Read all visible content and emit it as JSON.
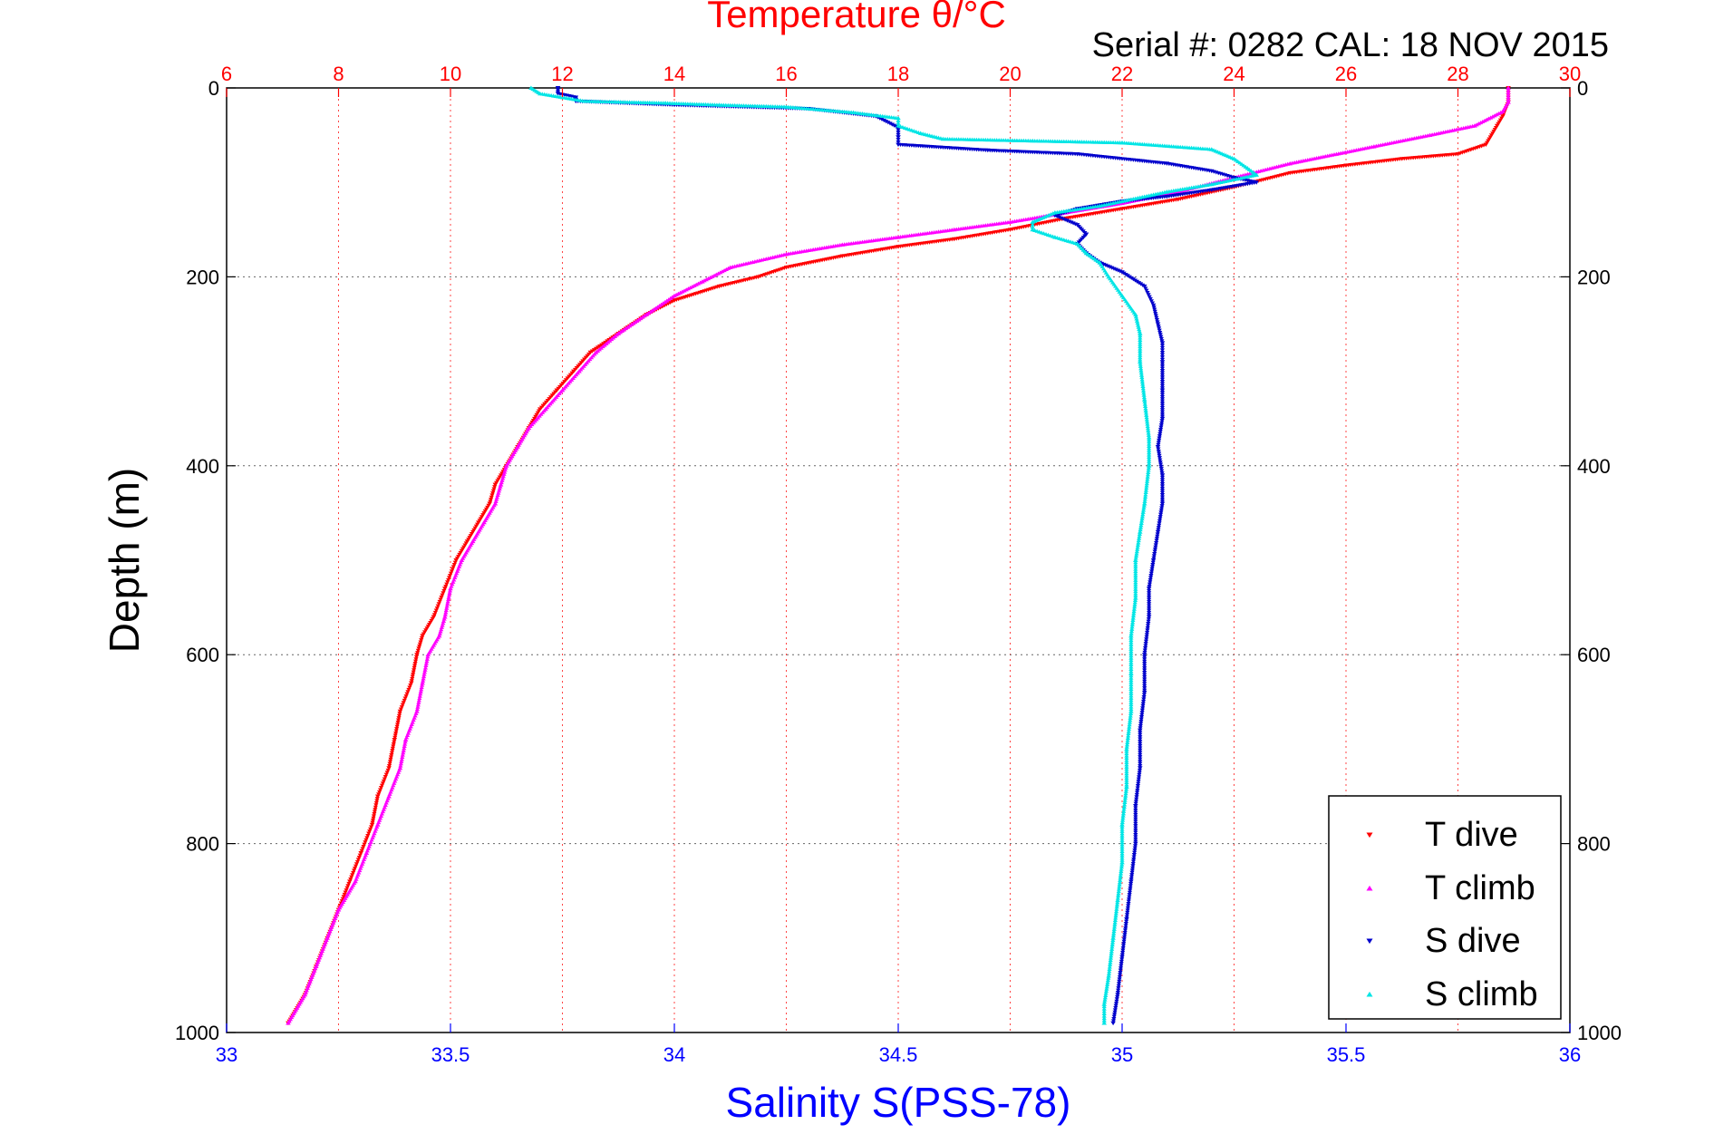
{
  "chart_data": {
    "type": "scatter",
    "title": "Temperature θ/°C",
    "annotation": "Serial #: 0282  CAL: 18 NOV 2015",
    "ylabel": "Depth (m)",
    "xlabel": "Salinity S(PSS-78)",
    "y_axis": {
      "range": [
        0,
        1000
      ],
      "reversed": true,
      "ticks": [
        "0",
        "200",
        "400",
        "600",
        "800",
        "1000"
      ]
    },
    "x_top": {
      "range": [
        6,
        30
      ],
      "ticks": [
        "6",
        "8",
        "10",
        "12",
        "14",
        "16",
        "18",
        "20",
        "22",
        "24",
        "26",
        "28",
        "30"
      ],
      "color": "#ff0000"
    },
    "x_bottom": {
      "range": [
        33,
        36
      ],
      "ticks": [
        "33",
        "33.5",
        "34",
        "34.5",
        "35",
        "35.5",
        "36"
      ],
      "color": "#0000ff"
    },
    "grid": true,
    "legend": {
      "placement": "bottom-right",
      "entries": [
        {
          "label": "T dive",
          "color": "#ff0000",
          "marker": "triangle-down"
        },
        {
          "label": "T climb",
          "color": "#ff00ff",
          "marker": "triangle-up"
        },
        {
          "label": "S dive",
          "color": "#0000cc",
          "marker": "triangle-down"
        },
        {
          "label": "S climb",
          "color": "#00e5e5",
          "marker": "triangle-up"
        }
      ]
    },
    "series": [
      {
        "name": "T dive",
        "axis": "top",
        "color": "#ff0000",
        "points": [
          [
            28.9,
            0
          ],
          [
            28.9,
            15
          ],
          [
            28.8,
            30
          ],
          [
            28.7,
            40
          ],
          [
            28.5,
            60
          ],
          [
            28.0,
            70
          ],
          [
            27.0,
            75
          ],
          [
            26.0,
            82
          ],
          [
            25.0,
            90
          ],
          [
            24.0,
            105
          ],
          [
            23.0,
            118
          ],
          [
            22.0,
            128
          ],
          [
            21.0,
            138
          ],
          [
            20.0,
            150
          ],
          [
            19.0,
            160
          ],
          [
            18.0,
            168
          ],
          [
            17.0,
            178
          ],
          [
            16.0,
            190
          ],
          [
            15.5,
            200
          ],
          [
            14.8,
            210
          ],
          [
            14.0,
            225
          ],
          [
            13.5,
            240
          ],
          [
            13.0,
            260
          ],
          [
            12.5,
            280
          ],
          [
            12.2,
            300
          ],
          [
            11.9,
            320
          ],
          [
            11.6,
            340
          ],
          [
            11.4,
            360
          ],
          [
            11.2,
            380
          ],
          [
            11.0,
            400
          ],
          [
            10.8,
            420
          ],
          [
            10.7,
            440
          ],
          [
            10.5,
            460
          ],
          [
            10.3,
            480
          ],
          [
            10.1,
            500
          ],
          [
            9.9,
            530
          ],
          [
            9.7,
            560
          ],
          [
            9.5,
            580
          ],
          [
            9.4,
            600
          ],
          [
            9.3,
            630
          ],
          [
            9.1,
            660
          ],
          [
            9.0,
            690
          ],
          [
            8.9,
            720
          ],
          [
            8.7,
            750
          ],
          [
            8.6,
            780
          ],
          [
            8.4,
            810
          ],
          [
            8.2,
            840
          ],
          [
            8.0,
            870
          ],
          [
            7.8,
            900
          ],
          [
            7.6,
            930
          ],
          [
            7.4,
            960
          ],
          [
            7.1,
            990
          ]
        ]
      },
      {
        "name": "T climb",
        "axis": "top",
        "color": "#ff00ff",
        "points": [
          [
            28.9,
            0
          ],
          [
            28.9,
            15
          ],
          [
            28.8,
            25
          ],
          [
            28.3,
            40
          ],
          [
            27.5,
            50
          ],
          [
            26.5,
            62
          ],
          [
            25.0,
            80
          ],
          [
            24.0,
            95
          ],
          [
            23.0,
            110
          ],
          [
            22.0,
            122
          ],
          [
            21.0,
            132
          ],
          [
            20.0,
            142
          ],
          [
            19.0,
            150
          ],
          [
            18.0,
            158
          ],
          [
            17.0,
            166
          ],
          [
            16.0,
            176
          ],
          [
            15.0,
            190
          ],
          [
            14.5,
            205
          ],
          [
            14.0,
            220
          ],
          [
            13.5,
            240
          ],
          [
            13.0,
            260
          ],
          [
            12.6,
            280
          ],
          [
            12.3,
            300
          ],
          [
            12.0,
            320
          ],
          [
            11.7,
            340
          ],
          [
            11.4,
            360
          ],
          [
            11.2,
            380
          ],
          [
            11.0,
            400
          ],
          [
            10.9,
            420
          ],
          [
            10.8,
            440
          ],
          [
            10.6,
            460
          ],
          [
            10.4,
            480
          ],
          [
            10.2,
            500
          ],
          [
            10.0,
            530
          ],
          [
            9.9,
            560
          ],
          [
            9.8,
            580
          ],
          [
            9.6,
            600
          ],
          [
            9.5,
            630
          ],
          [
            9.4,
            660
          ],
          [
            9.2,
            690
          ],
          [
            9.1,
            720
          ],
          [
            8.9,
            750
          ],
          [
            8.7,
            780
          ],
          [
            8.5,
            810
          ],
          [
            8.3,
            840
          ],
          [
            8.0,
            870
          ],
          [
            7.8,
            900
          ],
          [
            7.6,
            930
          ],
          [
            7.4,
            960
          ],
          [
            7.1,
            990
          ]
        ]
      },
      {
        "name": "S dive",
        "axis": "bottom",
        "color": "#0000cc",
        "points": [
          [
            33.74,
            0
          ],
          [
            33.74,
            6
          ],
          [
            33.78,
            10
          ],
          [
            33.78,
            14
          ],
          [
            34.0,
            18
          ],
          [
            34.3,
            22
          ],
          [
            34.45,
            30
          ],
          [
            34.5,
            42
          ],
          [
            34.5,
            52
          ],
          [
            34.5,
            60
          ],
          [
            34.7,
            66
          ],
          [
            34.9,
            70
          ],
          [
            35.1,
            80
          ],
          [
            35.2,
            88
          ],
          [
            35.25,
            95
          ],
          [
            35.3,
            100
          ],
          [
            35.2,
            108
          ],
          [
            35.1,
            115
          ],
          [
            35.0,
            120
          ],
          [
            34.9,
            128
          ],
          [
            34.85,
            135
          ],
          [
            34.9,
            145
          ],
          [
            34.92,
            155
          ],
          [
            34.9,
            165
          ],
          [
            34.92,
            175
          ],
          [
            34.95,
            185
          ],
          [
            35.0,
            195
          ],
          [
            35.05,
            210
          ],
          [
            35.07,
            230
          ],
          [
            35.08,
            250
          ],
          [
            35.09,
            270
          ],
          [
            35.09,
            290
          ],
          [
            35.09,
            320
          ],
          [
            35.09,
            350
          ],
          [
            35.08,
            380
          ],
          [
            35.09,
            410
          ],
          [
            35.09,
            440
          ],
          [
            35.08,
            470
          ],
          [
            35.07,
            500
          ],
          [
            35.06,
            530
          ],
          [
            35.06,
            560
          ],
          [
            35.05,
            600
          ],
          [
            35.05,
            640
          ],
          [
            35.04,
            680
          ],
          [
            35.04,
            720
          ],
          [
            35.03,
            760
          ],
          [
            35.03,
            800
          ],
          [
            35.02,
            840
          ],
          [
            35.01,
            880
          ],
          [
            35.0,
            920
          ],
          [
            34.99,
            960
          ],
          [
            34.98,
            990
          ]
        ]
      },
      {
        "name": "S climb",
        "axis": "bottom",
        "color": "#00e5e5",
        "points": [
          [
            33.68,
            0
          ],
          [
            33.7,
            6
          ],
          [
            33.75,
            10
          ],
          [
            33.8,
            14
          ],
          [
            33.98,
            16
          ],
          [
            34.1,
            18
          ],
          [
            34.25,
            20
          ],
          [
            34.4,
            26
          ],
          [
            34.5,
            32
          ],
          [
            34.5,
            40
          ],
          [
            34.55,
            48
          ],
          [
            34.6,
            54
          ],
          [
            34.8,
            56
          ],
          [
            35.0,
            58
          ],
          [
            35.2,
            65
          ],
          [
            35.25,
            75
          ],
          [
            35.28,
            85
          ],
          [
            35.3,
            92
          ],
          [
            35.2,
            102
          ],
          [
            35.1,
            110
          ],
          [
            34.95,
            125
          ],
          [
            34.85,
            132
          ],
          [
            34.8,
            142
          ],
          [
            34.8,
            150
          ],
          [
            34.85,
            158
          ],
          [
            34.9,
            165
          ],
          [
            34.92,
            175
          ],
          [
            34.95,
            185
          ],
          [
            34.97,
            200
          ],
          [
            35.0,
            220
          ],
          [
            35.03,
            240
          ],
          [
            35.04,
            260
          ],
          [
            35.04,
            290
          ],
          [
            35.05,
            330
          ],
          [
            35.06,
            370
          ],
          [
            35.06,
            400
          ],
          [
            35.05,
            440
          ],
          [
            35.04,
            470
          ],
          [
            35.03,
            500
          ],
          [
            35.03,
            540
          ],
          [
            35.02,
            580
          ],
          [
            35.02,
            620
          ],
          [
            35.02,
            660
          ],
          [
            35.01,
            700
          ],
          [
            35.01,
            740
          ],
          [
            35.0,
            780
          ],
          [
            35.0,
            820
          ],
          [
            34.99,
            860
          ],
          [
            34.98,
            900
          ],
          [
            34.97,
            940
          ],
          [
            34.96,
            970
          ],
          [
            34.96,
            990
          ]
        ]
      }
    ]
  }
}
